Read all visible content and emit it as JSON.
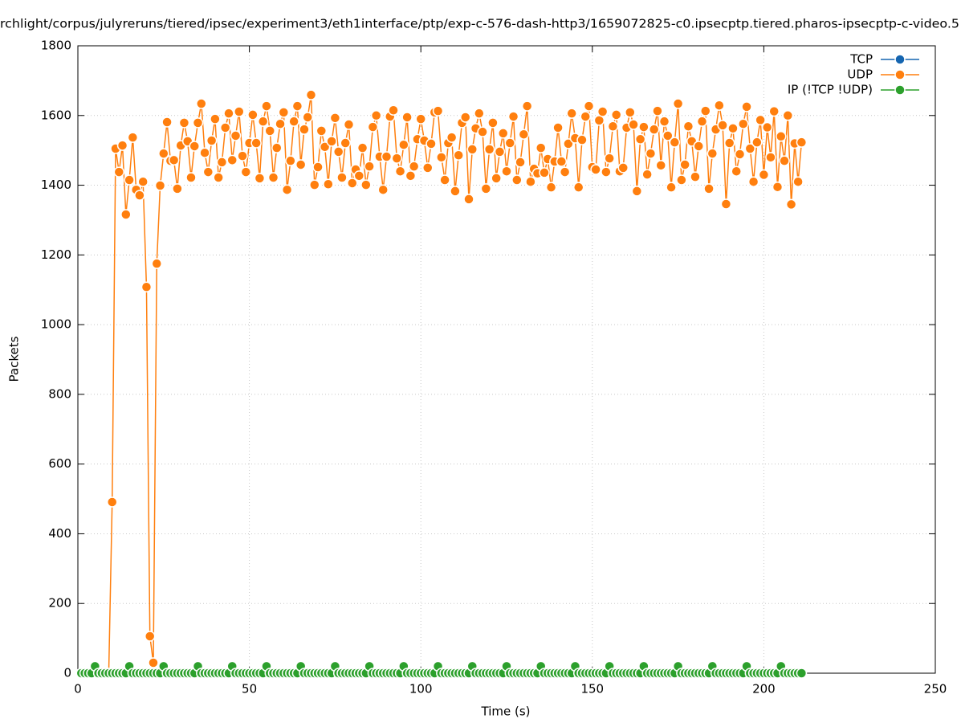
{
  "chart_data": {
    "type": "line",
    "title": "rchlight/corpus/julyreruns/tiered/ipsec/experiment3/eth1interface/ptp/exp-c-576-dash-http3/1659072825-c0.ipsecptp.tiered.pharos-ipsecptp-c-video.5",
    "x_label": "Time (s)",
    "y_label": "Packets",
    "x": [
      1,
      2,
      3,
      4,
      5,
      6,
      7,
      8,
      9,
      10,
      11,
      12,
      13,
      14,
      15,
      16,
      17,
      18,
      19,
      20,
      21,
      22,
      23,
      24,
      25,
      26,
      27,
      28,
      29,
      30,
      31,
      32,
      33,
      34,
      35,
      36,
      37,
      38,
      39,
      40,
      41,
      42,
      43,
      44,
      45,
      46,
      47,
      48,
      49,
      50,
      51,
      52,
      53,
      54,
      55,
      56,
      57,
      58,
      59,
      60,
      61,
      62,
      63,
      64,
      65,
      66,
      67,
      68,
      69,
      70,
      71,
      72,
      73,
      74,
      75,
      76,
      77,
      78,
      79,
      80,
      81,
      82,
      83,
      84,
      85,
      86,
      87,
      88,
      89,
      90,
      91,
      92,
      93,
      94,
      95,
      96,
      97,
      98,
      99,
      100,
      101,
      102,
      103,
      104,
      105,
      106,
      107,
      108,
      109,
      110,
      111,
      112,
      113,
      114,
      115,
      116,
      117,
      118,
      119,
      120,
      121,
      122,
      123,
      124,
      125,
      126,
      127,
      128,
      129,
      130,
      131,
      132,
      133,
      134,
      135,
      136,
      137,
      138,
      139,
      140,
      141,
      142,
      143,
      144,
      145,
      146,
      147,
      148,
      149,
      150,
      151,
      152,
      153,
      154,
      155,
      156,
      157,
      158,
      159,
      160,
      161,
      162,
      163,
      164,
      165,
      166,
      167,
      168,
      169,
      170,
      171,
      172,
      173,
      174,
      175,
      176,
      177,
      178,
      179,
      180,
      181,
      182,
      183,
      184,
      185,
      186,
      187,
      188,
      189,
      190,
      191,
      192,
      193,
      194,
      195,
      196,
      197,
      198,
      199,
      200,
      201,
      202,
      203,
      204,
      205,
      206,
      207,
      208,
      209,
      210,
      211
    ],
    "series": [
      {
        "name": "TCP",
        "color": "#1565b0",
        "values": [
          0,
          0,
          0,
          0,
          0,
          0,
          0,
          0,
          0,
          0,
          0,
          0,
          0,
          0,
          0,
          0,
          0,
          0,
          0,
          0,
          0,
          0,
          0,
          0,
          0,
          0,
          0,
          0,
          0,
          0,
          0,
          0,
          0,
          0,
          0,
          0,
          0,
          0,
          0,
          0,
          0,
          0,
          0,
          0,
          0,
          0,
          0,
          0,
          0,
          0,
          0,
          0,
          0,
          0,
          0,
          0,
          0,
          0,
          0,
          0,
          0,
          0,
          0,
          0,
          0,
          0,
          0,
          0,
          0,
          0,
          0,
          0,
          0,
          0,
          0,
          0,
          0,
          0,
          0,
          0,
          0,
          0,
          0,
          0,
          0,
          0,
          0,
          0,
          0,
          0,
          0,
          0,
          0,
          0,
          0,
          0,
          0,
          0,
          0,
          0,
          0,
          0,
          0,
          0,
          0,
          0,
          0,
          0,
          0,
          0,
          0,
          0,
          0,
          0,
          0,
          0,
          0,
          0,
          0,
          0,
          0,
          0,
          0,
          0,
          0,
          0,
          0,
          0,
          0,
          0,
          0,
          0,
          0,
          0,
          0,
          0,
          0,
          0,
          0,
          0,
          0,
          0,
          0,
          0,
          0,
          0,
          0,
          0,
          0,
          0,
          0,
          0,
          0,
          0,
          0,
          0,
          0,
          0,
          0,
          0,
          0,
          0,
          0,
          0,
          0,
          0,
          0,
          0,
          0,
          0,
          0,
          0,
          0,
          0,
          0,
          0,
          0,
          0,
          0,
          0,
          0,
          0,
          0,
          0,
          0,
          0,
          0,
          0,
          0,
          0,
          0,
          0,
          0,
          0,
          0,
          0,
          0,
          0,
          0,
          0,
          0,
          0,
          0,
          0,
          0,
          0,
          0,
          0,
          0,
          0,
          0
        ]
      },
      {
        "name": "UDP",
        "color": "#ff7f0e",
        "values": [
          0,
          0,
          0,
          0,
          0,
          0,
          0,
          0,
          0,
          491,
          1505,
          1438,
          1514,
          1316,
          1415,
          1537,
          1387,
          1371,
          1410,
          1108,
          106,
          30,
          1175,
          1399,
          1491,
          1581,
          1470,
          1472,
          1390,
          1514,
          1579,
          1526,
          1422,
          1512,
          1579,
          1634,
          1493,
          1438,
          1528,
          1590,
          1422,
          1466,
          1565,
          1606,
          1472,
          1542,
          1611,
          1484,
          1438,
          1521,
          1602,
          1521,
          1420,
          1583,
          1627,
          1556,
          1422,
          1507,
          1576,
          1609,
          1387,
          1470,
          1583,
          1627,
          1459,
          1560,
          1595,
          1659,
          1401,
          1452,
          1556,
          1510,
          1403,
          1526,
          1593,
          1496,
          1422,
          1521,
          1574,
          1406,
          1445,
          1427,
          1507,
          1401,
          1454,
          1567,
          1600,
          1482,
          1387,
          1482,
          1597,
          1615,
          1477,
          1440,
          1516,
          1595,
          1427,
          1454,
          1532,
          1590,
          1528,
          1450,
          1519,
          1609,
          1613,
          1480,
          1415,
          1521,
          1537,
          1383,
          1486,
          1579,
          1595,
          1360,
          1503,
          1563,
          1606,
          1553,
          1390,
          1503,
          1579,
          1420,
          1496,
          1549,
          1440,
          1521,
          1597,
          1415,
          1466,
          1546,
          1627,
          1410,
          1447,
          1434,
          1507,
          1436,
          1475,
          1394,
          1468,
          1565,
          1468,
          1438,
          1519,
          1606,
          1535,
          1394,
          1530,
          1597,
          1627,
          1452,
          1445,
          1586,
          1611,
          1438,
          1477,
          1569,
          1602,
          1440,
          1450,
          1565,
          1609,
          1574,
          1383,
          1532,
          1567,
          1431,
          1491,
          1560,
          1613,
          1457,
          1583,
          1542,
          1394,
          1523,
          1634,
          1415,
          1459,
          1569,
          1526,
          1424,
          1512,
          1583,
          1613,
          1390,
          1491,
          1560,
          1629,
          1572,
          1346,
          1521,
          1563,
          1440,
          1489,
          1576,
          1625,
          1505,
          1410,
          1523,
          1587,
          1430,
          1566,
          1480,
          1612,
          1395,
          1540,
          1470,
          1600,
          1345,
          1520,
          1410,
          1523
        ]
      },
      {
        "name": "IP (!TCP  !UDP)",
        "color": "#2ca02c",
        "values": [
          0,
          0,
          0,
          0,
          20,
          0,
          0,
          0,
          0,
          0,
          0,
          0,
          0,
          0,
          20,
          0,
          0,
          0,
          0,
          0,
          0,
          0,
          0,
          0,
          20,
          0,
          0,
          0,
          0,
          0,
          0,
          0,
          0,
          0,
          20,
          0,
          0,
          0,
          0,
          0,
          0,
          0,
          0,
          0,
          20,
          0,
          0,
          0,
          0,
          0,
          0,
          0,
          0,
          0,
          20,
          0,
          0,
          0,
          0,
          0,
          0,
          0,
          0,
          0,
          20,
          0,
          0,
          0,
          0,
          0,
          0,
          0,
          0,
          0,
          20,
          0,
          0,
          0,
          0,
          0,
          0,
          0,
          0,
          0,
          20,
          0,
          0,
          0,
          0,
          0,
          0,
          0,
          0,
          0,
          20,
          0,
          0,
          0,
          0,
          0,
          0,
          0,
          0,
          0,
          20,
          0,
          0,
          0,
          0,
          0,
          0,
          0,
          0,
          0,
          20,
          0,
          0,
          0,
          0,
          0,
          0,
          0,
          0,
          0,
          20,
          0,
          0,
          0,
          0,
          0,
          0,
          0,
          0,
          0,
          20,
          0,
          0,
          0,
          0,
          0,
          0,
          0,
          0,
          0,
          20,
          0,
          0,
          0,
          0,
          0,
          0,
          0,
          0,
          0,
          20,
          0,
          0,
          0,
          0,
          0,
          0,
          0,
          0,
          0,
          20,
          0,
          0,
          0,
          0,
          0,
          0,
          0,
          0,
          0,
          20,
          0,
          0,
          0,
          0,
          0,
          0,
          0,
          0,
          0,
          20,
          0,
          0,
          0,
          0,
          0,
          0,
          0,
          0,
          0,
          20,
          0,
          0,
          0,
          0,
          0,
          0,
          0,
          0,
          0,
          20,
          0,
          0,
          0,
          0,
          0,
          0
        ]
      }
    ],
    "xlim": [
      0,
      250
    ],
    "xticks": [
      0,
      50,
      100,
      150,
      200,
      250
    ],
    "ylim": [
      0,
      1800
    ],
    "yticks": [
      0,
      200,
      400,
      600,
      800,
      1000,
      1200,
      1400,
      1600,
      1800
    ],
    "grid": true,
    "legend": "top-right"
  }
}
